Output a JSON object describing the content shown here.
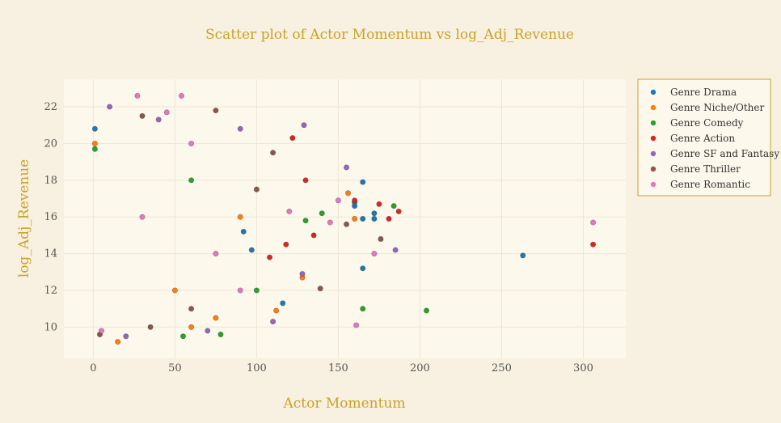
{
  "chart_data": {
    "type": "scatter",
    "title": "Scatter plot of Actor Momentum vs log_Adj_Revenue",
    "xlabel": "Actor Momentum",
    "ylabel": "log_Adj_Revenue",
    "xlim": [
      -18,
      326
    ],
    "ylim": [
      8.3,
      23.5
    ],
    "xticks": [
      0,
      50,
      100,
      150,
      200,
      250,
      300
    ],
    "yticks": [
      10,
      12,
      14,
      16,
      18,
      20,
      22
    ],
    "grid": true,
    "legend_position": "top-right",
    "colors": {
      "background": "#f8f0e0",
      "plot_background": "#fdf8ec",
      "accent": "#c9a227"
    },
    "series": [
      {
        "name": "Genre Drama",
        "color": "#1f77b4",
        "points": [
          [
            1,
            20.8
          ],
          [
            263,
            13.9
          ],
          [
            165,
            17.9
          ],
          [
            165,
            13.2
          ],
          [
            160,
            16.6
          ],
          [
            172,
            15.9
          ],
          [
            172,
            16.2
          ],
          [
            165,
            15.9
          ],
          [
            160,
            16.8
          ],
          [
            97,
            14.2
          ],
          [
            116,
            11.3
          ],
          [
            92,
            15.2
          ]
        ]
      },
      {
        "name": "Genre Niche/Other",
        "color": "#ff7f0e",
        "points": [
          [
            1,
            20
          ],
          [
            156,
            17.3
          ],
          [
            160,
            15.9
          ],
          [
            128,
            12.7
          ],
          [
            112,
            10.9
          ],
          [
            15,
            9.2
          ],
          [
            60,
            10
          ],
          [
            50,
            12
          ],
          [
            90,
            16
          ],
          [
            75,
            10.5
          ]
        ]
      },
      {
        "name": "Genre Comedy",
        "color": "#2ca02c",
        "points": [
          [
            204,
            10.9
          ],
          [
            165,
            11
          ],
          [
            184,
            16.6
          ],
          [
            1,
            19.7
          ],
          [
            100,
            12
          ],
          [
            55,
            9.5
          ],
          [
            78,
            9.6
          ],
          [
            60,
            18
          ],
          [
            130,
            15.8
          ],
          [
            140,
            16.2
          ]
        ]
      },
      {
        "name": "Genre Action",
        "color": "#d62728",
        "points": [
          [
            306,
            14.5
          ],
          [
            187,
            16.3
          ],
          [
            181,
            15.9
          ],
          [
            175,
            16.7
          ],
          [
            160,
            16.9
          ],
          [
            122,
            20.3
          ],
          [
            135,
            15
          ],
          [
            130,
            18
          ],
          [
            118,
            14.5
          ],
          [
            108,
            13.8
          ]
        ]
      },
      {
        "name": "Genre SF and Fantasy",
        "color": "#9467bd",
        "points": [
          [
            10,
            22
          ],
          [
            129,
            21
          ],
          [
            155,
            18.7
          ],
          [
            185,
            14.2
          ],
          [
            128,
            12.9
          ],
          [
            110,
            10.3
          ],
          [
            90,
            20.8
          ],
          [
            40,
            21.3
          ],
          [
            20,
            9.5
          ],
          [
            70,
            9.8
          ]
        ]
      },
      {
        "name": "Genre Thriller",
        "color": "#8c564b",
        "points": [
          [
            75,
            21.8
          ],
          [
            30,
            21.5
          ],
          [
            139,
            12.1
          ],
          [
            176,
            14.8
          ],
          [
            155,
            15.6
          ],
          [
            4,
            9.6
          ],
          [
            110,
            19.5
          ],
          [
            100,
            17.5
          ],
          [
            60,
            11
          ],
          [
            35,
            10
          ]
        ]
      },
      {
        "name": "Genre Romantic",
        "color": "#e377c2",
        "points": [
          [
            27,
            22.6
          ],
          [
            54,
            22.6
          ],
          [
            306,
            15.7
          ],
          [
            161,
            10.1
          ],
          [
            172,
            14
          ],
          [
            150,
            16.9
          ],
          [
            145,
            15.7
          ],
          [
            120,
            16.3
          ],
          [
            90,
            12
          ],
          [
            60,
            20
          ],
          [
            45,
            21.7
          ],
          [
            5,
            9.8
          ],
          [
            30,
            16
          ],
          [
            75,
            14
          ]
        ]
      }
    ]
  }
}
